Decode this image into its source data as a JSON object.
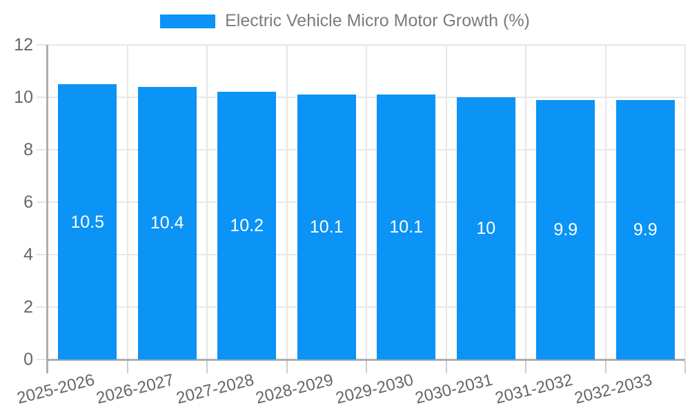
{
  "legend": {
    "label": "Electric Vehicle Micro Motor Growth (%)"
  },
  "colors": {
    "bar": "#0b93f6",
    "grid": "#e7e7e7",
    "axis": "#adadad",
    "tick": "#cccccc",
    "tick_label": "#666666",
    "legend_label": "#7b7b7b",
    "value_label": "#ffffff"
  },
  "chart_data": {
    "type": "bar",
    "title": "Electric Vehicle Micro Motor Growth (%)",
    "categories": [
      "2025-2026",
      "2026-2027",
      "2027-2028",
      "2028-2029",
      "2029-2030",
      "2030-2031",
      "2031-2032",
      "2032-2033"
    ],
    "values": [
      10.5,
      10.4,
      10.2,
      10.1,
      10.1,
      10,
      9.9,
      9.9
    ],
    "value_labels": [
      "10.5",
      "10.4",
      "10.2",
      "10.1",
      "10.1",
      "10",
      "9.9",
      "9.9"
    ],
    "xlabel": "",
    "ylabel": "",
    "ylim": [
      0,
      12
    ],
    "yticks": [
      0,
      2,
      4,
      6,
      8,
      10,
      12
    ],
    "grid": true,
    "legend_position": "top",
    "bar_color": "#0b93f6",
    "x_label_rotation_deg": -14
  }
}
